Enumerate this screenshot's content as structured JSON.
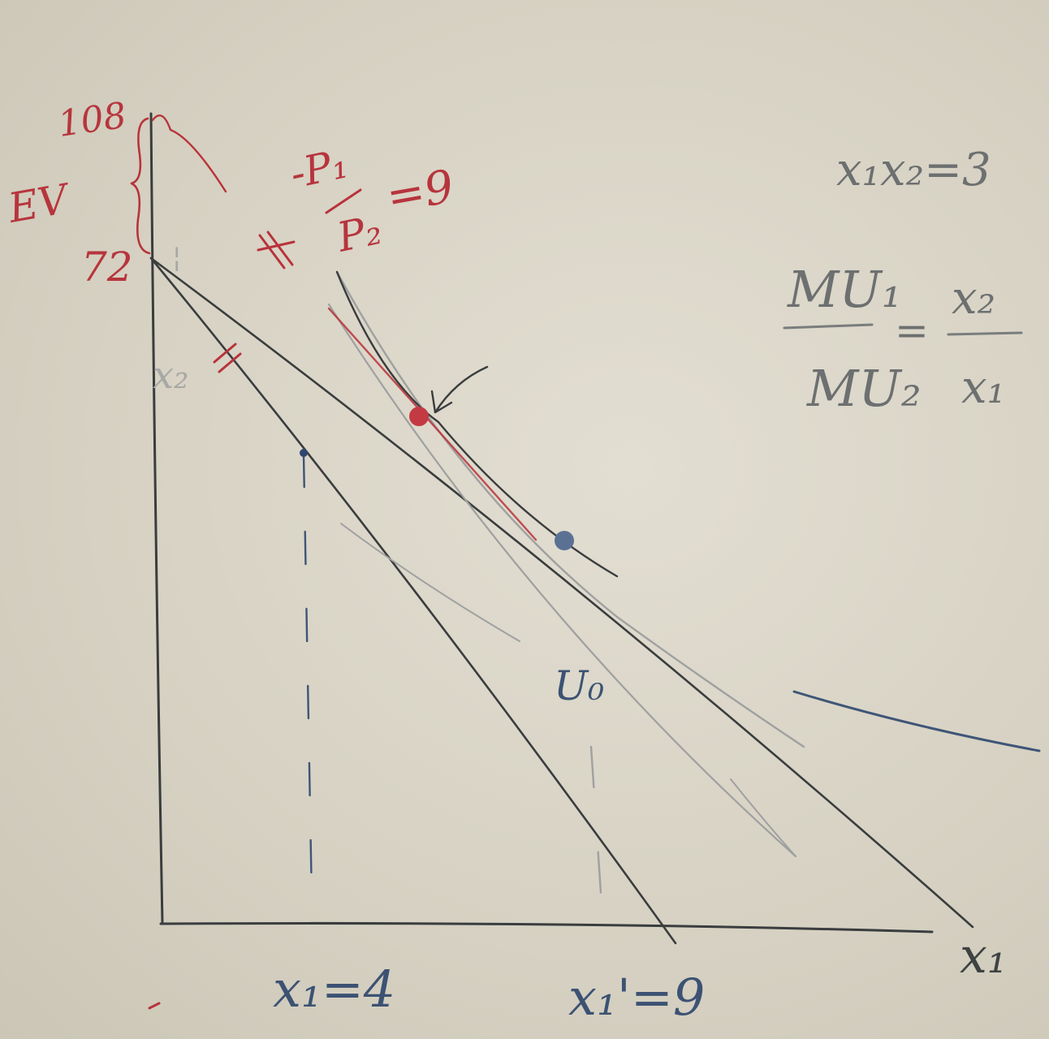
{
  "labels": {
    "ev_top_value": "108",
    "ev_label": "EV",
    "ev_bottom_value": "72",
    "x2_axis_label": "x₂",
    "x1_axis_label": "x₁",
    "x1_initial": "x₁=4",
    "x1_new": "x₁'=9",
    "indifference_label": "U₀",
    "price_ratio_numerator": "-P₁",
    "price_ratio_denominator": "P₂",
    "price_ratio_value": "=9",
    "utility_function": "x₁x₂=3",
    "mrs_numerator": "MU₁",
    "mrs_denominator": "MU₂",
    "mrs_rhs_numerator": "x₂",
    "mrs_rhs_denominator": "x₁",
    "mrs_equals": "="
  },
  "colors": {
    "black_ink": "#3a3d3e",
    "blue_ink": "#3e5577",
    "red_ink": "#b8333b",
    "board": "#d9d4c6"
  }
}
